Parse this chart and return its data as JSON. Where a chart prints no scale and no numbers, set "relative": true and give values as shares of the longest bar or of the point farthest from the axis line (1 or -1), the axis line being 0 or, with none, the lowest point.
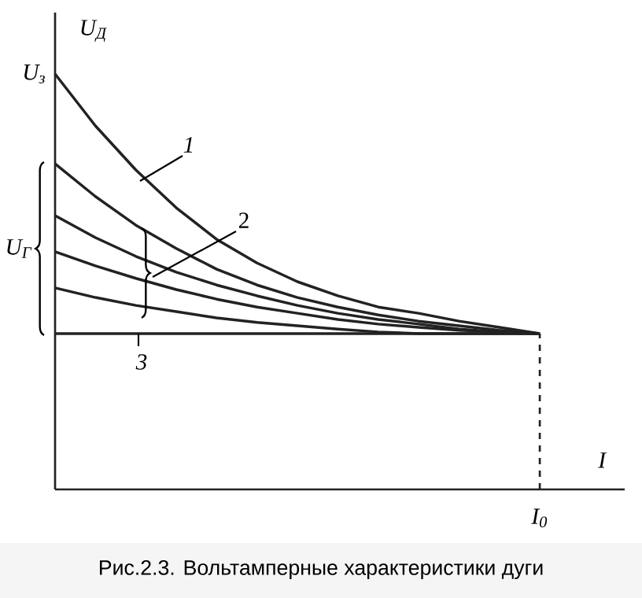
{
  "chart_data": {
    "type": "line",
    "relative": true,
    "xlabel": "I",
    "ylabel": "U$_{Д}$",
    "categories": [
      null,
      null,
      null,
      null,
      null,
      null,
      null,
      null,
      null,
      null,
      null,
      null,
      null,
      null,
      null
    ],
    "series": [
      {
        "color": "#222222",
        "values": [
          1,
          0.875,
          0.769,
          0.678,
          0.602,
          0.545,
          0.5,
          0.466,
          0.439,
          0.424,
          0.405,
          0.39,
          0.375,
          null,
          null
        ]
      },
      {
        "color": "#222222",
        "values": [
          0.784,
          0.705,
          0.636,
          0.58,
          0.53,
          0.492,
          0.462,
          0.439,
          0.42,
          0.405,
          0.394,
          0.383,
          0.375,
          null,
          null
        ]
      },
      {
        "color": "#222222",
        "values": [
          0.659,
          0.606,
          0.561,
          0.523,
          0.492,
          0.466,
          0.443,
          0.424,
          0.409,
          0.398,
          0.386,
          0.379,
          0.375,
          null,
          null
        ]
      },
      {
        "color": "#222222",
        "values": [
          0.572,
          0.538,
          0.508,
          0.481,
          0.458,
          0.439,
          0.424,
          0.409,
          0.398,
          0.39,
          0.383,
          0.379,
          0.375,
          null,
          null
        ]
      },
      {
        "color": "#222222",
        "values": [
          0.485,
          0.462,
          0.443,
          0.428,
          0.413,
          0.402,
          0.394,
          0.386,
          0.379,
          0.375,
          0.375,
          0.375,
          0.375,
          null,
          null
        ]
      },
      {
        "color": "#222222",
        "values": [
          0.375,
          0.375,
          0.375,
          0.375,
          0.375,
          0.375,
          0.375,
          0.375,
          0.375,
          0.375,
          0.375,
          0.375,
          0.375,
          null,
          null
        ]
      }
    ],
    "line_style": "solid",
    "annotations": [
      "U$_{з}$",
      "I$_{0}$",
      "U$_{Г}$",
      "1",
      "2",
      "3",
      "Рис.2.3. Вольтамперные характеристики дуги"
    ]
  }
}
